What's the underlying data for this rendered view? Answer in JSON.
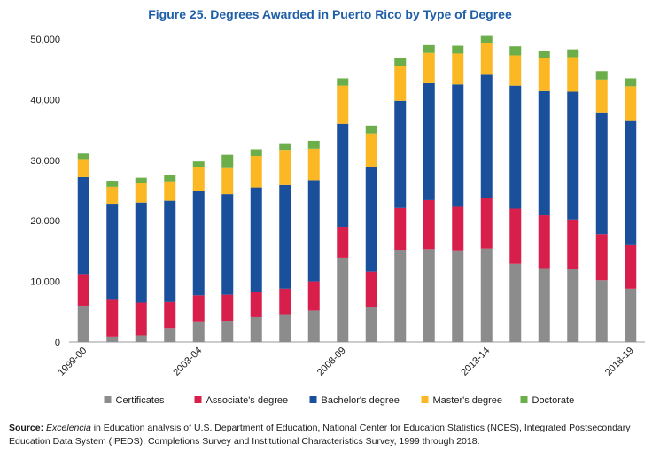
{
  "chart_data": {
    "type": "bar",
    "stacked": true,
    "title": "Figure 25. Degrees Awarded in Puerto Rico by Type of Degree",
    "xlabel": "",
    "ylabel": "",
    "ylim": [
      0,
      50000
    ],
    "yticks": [
      0,
      10000,
      20000,
      30000,
      40000,
      50000
    ],
    "ytick_labels": [
      "0",
      "10,000",
      "20,000",
      "30,000",
      "40,000",
      "50,000"
    ],
    "categories": [
      "1999-00",
      "2000-01",
      "2001-02",
      "2002-03",
      "2003-04",
      "2004-05",
      "2005-06",
      "2006-07",
      "2007-08",
      "2008-09",
      "2009-10",
      "2010-11",
      "2011-12",
      "2012-13",
      "2013-14",
      "2014-15",
      "2015-16",
      "2016-17",
      "2017-18",
      "2018-19"
    ],
    "xtick_labels": [
      "1999-00",
      "",
      "",
      "",
      "2003-04",
      "",
      "",
      "",
      "",
      "2008-09",
      "",
      "",
      "",
      "",
      "2013-14",
      "",
      "",
      "",
      "",
      "2018-19"
    ],
    "grid": false,
    "legend_position": "bottom",
    "series": [
      {
        "name": "Certificates",
        "color": "#8c8c8c",
        "values": [
          6000,
          900,
          1100,
          2300,
          3400,
          3500,
          4100,
          4600,
          5200,
          13900,
          5700,
          15200,
          15300,
          15100,
          15400,
          12900,
          12200,
          12000,
          10200,
          8800
        ]
      },
      {
        "name": "Associate's degree",
        "color": "#d81e4a",
        "values": [
          5200,
          6200,
          5400,
          4300,
          4300,
          4300,
          4200,
          4200,
          4800,
          5100,
          5900,
          6900,
          8100,
          7200,
          8300,
          9100,
          8700,
          8200,
          7600,
          7300
        ]
      },
      {
        "name": "Bachelor's degree",
        "color": "#1a4f9c",
        "values": [
          16000,
          15700,
          16500,
          16700,
          17300,
          16600,
          17200,
          17100,
          16700,
          17000,
          17200,
          17700,
          19300,
          20200,
          20400,
          20300,
          20500,
          21100,
          20100,
          20500
        ]
      },
      {
        "name": "Master's degree",
        "color": "#fbb824",
        "values": [
          3000,
          2800,
          3200,
          3200,
          3800,
          4300,
          5200,
          5800,
          5200,
          6300,
          5600,
          5800,
          5000,
          5100,
          5200,
          5000,
          5500,
          5700,
          5400,
          5600
        ]
      },
      {
        "name": "Doctorate",
        "color": "#6cae4a",
        "values": [
          900,
          1000,
          900,
          1000,
          1000,
          2200,
          1100,
          1100,
          1300,
          1200,
          1300,
          1300,
          1300,
          1300,
          1200,
          1500,
          1200,
          1300,
          1400,
          1300
        ]
      }
    ]
  },
  "source": {
    "label": "Source:",
    "italic": "Excelencia",
    "text": " in Education analysis of U.S. Department of Education, National Center for Education Statistics (NCES), Integrated Postsecondary Education Data System (IPEDS), Completions Survey and Institutional Characteristics Survey, 1999 through 2018."
  }
}
